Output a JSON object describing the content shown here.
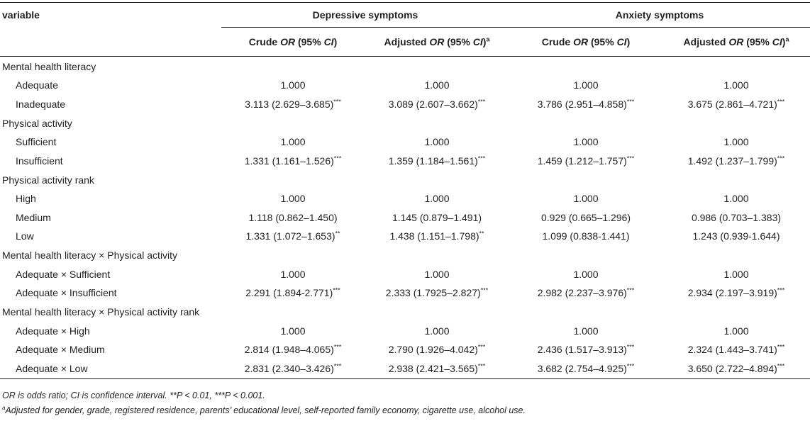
{
  "table": {
    "col_variable": "variable",
    "groups": [
      "Depressive symptoms",
      "Anxiety symptoms"
    ],
    "subheaders": [
      {
        "pre": "Crude ",
        "it": "OR",
        "mid": " (95% ",
        "it2": "CI",
        "post": ")",
        "sup": ""
      },
      {
        "pre": "Adjusted ",
        "it": "OR",
        "mid": " (95% ",
        "it2": "CI",
        "post": ")",
        "sup": "a"
      },
      {
        "pre": "Crude ",
        "it": "OR",
        "mid": " (95% ",
        "it2": "CI",
        "post": ")",
        "sup": ""
      },
      {
        "pre": "Adjusted ",
        "it": "OR",
        "mid": " (95% ",
        "it2": "CI",
        "post": ")",
        "sup": "a"
      }
    ],
    "sections": [
      {
        "title": "Mental health literacy",
        "rows": [
          {
            "label": "Adequate",
            "cells": [
              [
                "1.000",
                ""
              ],
              [
                "1.000",
                ""
              ],
              [
                "1.000",
                ""
              ],
              [
                "1.000",
                ""
              ]
            ]
          },
          {
            "label": "Inadequate",
            "cells": [
              [
                "3.113 (2.629–3.685)",
                "***"
              ],
              [
                "3.089 (2.607–3.662)",
                "***"
              ],
              [
                "3.786 (2.951–4.858)",
                "***"
              ],
              [
                "3.675 (2.861–4.721)",
                "***"
              ]
            ]
          }
        ]
      },
      {
        "title": "Physical activity",
        "rows": [
          {
            "label": "Sufficient",
            "cells": [
              [
                "1.000",
                ""
              ],
              [
                "1.000",
                ""
              ],
              [
                "1.000",
                ""
              ],
              [
                "1.000",
                ""
              ]
            ]
          },
          {
            "label": "Insufficient",
            "cells": [
              [
                "1.331 (1.161–1.526)",
                "***"
              ],
              [
                "1.359 (1.184–1.561)",
                "***"
              ],
              [
                "1.459 (1.212–1.757)",
                "***"
              ],
              [
                "1.492 (1.237–1.799)",
                "***"
              ]
            ]
          }
        ]
      },
      {
        "title": "Physical activity rank",
        "rows": [
          {
            "label": "High",
            "cells": [
              [
                "1.000",
                ""
              ],
              [
                "1.000",
                ""
              ],
              [
                "1.000",
                ""
              ],
              [
                "1.000",
                ""
              ]
            ]
          },
          {
            "label": "Medium",
            "cells": [
              [
                "1.118 (0.862–1.450)",
                ""
              ],
              [
                "1.145 (0.879–1.491)",
                ""
              ],
              [
                "0.929 (0.665–1.296)",
                ""
              ],
              [
                "0.986 (0.703–1.383)",
                ""
              ]
            ]
          },
          {
            "label": "Low",
            "cells": [
              [
                "1.331 (1.072–1.653)",
                "**"
              ],
              [
                "1.438 (1.151–1.798)",
                "**"
              ],
              [
                "1.099 (0.838-1.441)",
                ""
              ],
              [
                "1.243 (0.939-1.644)",
                ""
              ]
            ]
          }
        ]
      },
      {
        "title": "Mental health literacy × Physical activity",
        "rows": [
          {
            "label": "Adequate × Sufficient",
            "cells": [
              [
                "1.000",
                ""
              ],
              [
                "1.000",
                ""
              ],
              [
                "1.000",
                ""
              ],
              [
                "1.000",
                ""
              ]
            ]
          },
          {
            "label": "Adequate × Insufficient",
            "cells": [
              [
                "2.291 (1.894-2.771)",
                "***"
              ],
              [
                "2.333 (1.7925–2.827)",
                "***"
              ],
              [
                "2.982 (2.237–3.976)",
                "***"
              ],
              [
                "2.934 (2.197–3.919)",
                "***"
              ]
            ]
          }
        ]
      },
      {
        "title": "Mental health literacy × Physical activity rank",
        "rows": [
          {
            "label": "Adequate × High",
            "cells": [
              [
                "1.000",
                ""
              ],
              [
                "1.000",
                ""
              ],
              [
                "1.000",
                ""
              ],
              [
                "1.000",
                ""
              ]
            ]
          },
          {
            "label": "Adequate × Medium",
            "cells": [
              [
                "2.814 (1.948–4.065)",
                "***"
              ],
              [
                "2.790 (1.926–4.042)",
                "***"
              ],
              [
                "2.436 (1.517–3.913)",
                "***"
              ],
              [
                "2.324 (1.443–3.741)",
                "***"
              ]
            ]
          },
          {
            "label": "Adequate × Low",
            "cells": [
              [
                "2.831 (2.340–3.426)",
                "***"
              ],
              [
                "2.938 (2.421–3.565)",
                "***"
              ],
              [
                "3.682 (2.754–4.925)",
                "***"
              ],
              [
                "3.650 (2.722–4.894)",
                "***"
              ]
            ]
          }
        ]
      }
    ]
  },
  "notes": {
    "line1": "OR is odds ratio; CI is confidence interval. **P < 0.01, ***P < 0.001.",
    "line2_sup": "a",
    "line2": "Adjusted for gender, grade, registered residence, parents’ educational level, self-reported family economy, cigarette use, alcohol use."
  }
}
